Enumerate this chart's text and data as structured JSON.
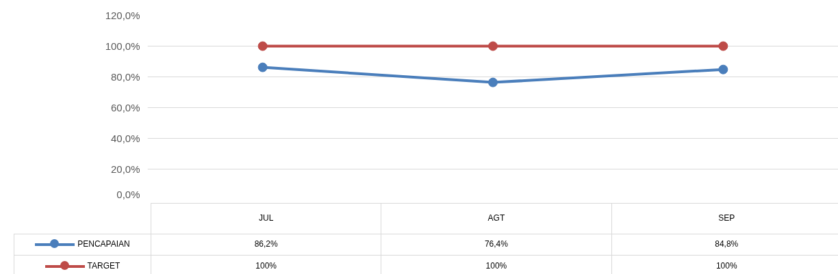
{
  "chart_data": {
    "type": "line",
    "categories": [
      "JUL",
      "AGT",
      "SEP"
    ],
    "series": [
      {
        "name": "PENCAPAIAN",
        "color": "#4a7ebb",
        "values": [
          86.2,
          76.4,
          84.8
        ],
        "value_labels": [
          "86,2%",
          "76,4%",
          "84,8%"
        ]
      },
      {
        "name": "TARGET",
        "color": "#be4b48",
        "values": [
          100,
          100,
          100
        ],
        "value_labels": [
          "100%",
          "100%",
          "100%"
        ]
      }
    ],
    "ylim": [
      0,
      120
    ],
    "yticks": [
      {
        "value": 0,
        "label": "0,0%"
      },
      {
        "value": 20,
        "label": "20,0%"
      },
      {
        "value": 40,
        "label": "40,0%"
      },
      {
        "value": 60,
        "label": "60,0%"
      },
      {
        "value": 80,
        "label": "80,0%"
      },
      {
        "value": 100,
        "label": "100,0%"
      },
      {
        "value": 120,
        "label": "120,0%"
      }
    ],
    "grid": "y",
    "marker": "circle",
    "line_style": "solid",
    "legend": "bottom"
  }
}
